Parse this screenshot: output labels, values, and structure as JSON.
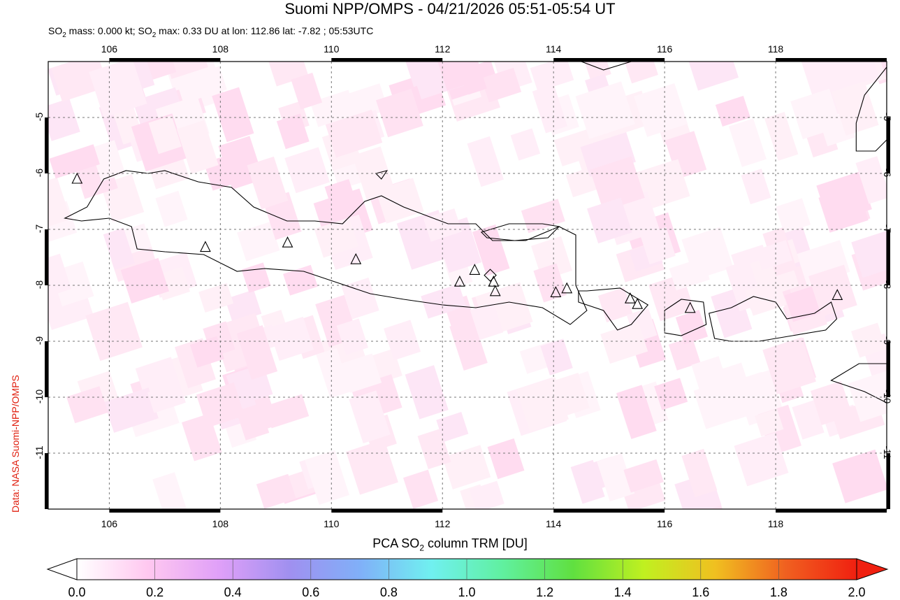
{
  "title": "Suomi NPP/OMPS - 04/21/2026 05:51-05:54 UT",
  "subtitle": {
    "prefix": "SO",
    "sub": "2",
    "mid1": " mass: 0.000 kt; SO",
    "sub2": "2",
    "rest": " max: 0.33 DU at lon: 112.86 lat: -7.82 ; 05:53UTC"
  },
  "credit": "Data: NASA Suomi-NPP/OMPS",
  "map": {
    "lon_range": [
      104.9,
      120.0
    ],
    "lat_range": [
      -12.0,
      -4.0
    ],
    "x_ticks": [
      "106",
      "108",
      "110",
      "112",
      "114",
      "116",
      "118"
    ],
    "y_ticks": [
      "-5",
      "-6",
      "-7",
      "-8",
      "-9",
      "-10",
      "-11"
    ],
    "grid": true,
    "volcanoes": [
      {
        "lon": 105.42,
        "lat": -6.1
      },
      {
        "lon": 107.73,
        "lat": -7.32
      },
      {
        "lon": 109.21,
        "lat": -7.24
      },
      {
        "lon": 110.44,
        "lat": -7.54
      },
      {
        "lon": 112.31,
        "lat": -7.94
      },
      {
        "lon": 112.58,
        "lat": -7.73
      },
      {
        "lon": 112.92,
        "lat": -7.94
      },
      {
        "lon": 112.95,
        "lat": -8.11
      },
      {
        "lon": 114.04,
        "lat": -8.13
      },
      {
        "lon": 114.24,
        "lat": -8.06
      },
      {
        "lon": 115.38,
        "lat": -8.24
      },
      {
        "lon": 115.51,
        "lat": -8.34
      },
      {
        "lon": 116.46,
        "lat": -8.41
      },
      {
        "lon": 119.11,
        "lat": -8.18
      }
    ],
    "max_marker": {
      "lon": 112.86,
      "lat": -7.82
    }
  },
  "colorbar": {
    "label_pre": "PCA SO",
    "label_sub": "2",
    "label_post": " column TRM [DU]",
    "ticks": [
      "0.0",
      "0.2",
      "0.4",
      "0.6",
      "0.8",
      "1.0",
      "1.2",
      "1.4",
      "1.6",
      "1.8",
      "2.0"
    ],
    "colors": [
      "#ffffff",
      "#ffc8f0",
      "#e0a0f8",
      "#a090f0",
      "#80b0f8",
      "#70f0f0",
      "#60f0a0",
      "#60e040",
      "#c0f020",
      "#f0c020",
      "#f06020",
      "#f02010"
    ]
  }
}
